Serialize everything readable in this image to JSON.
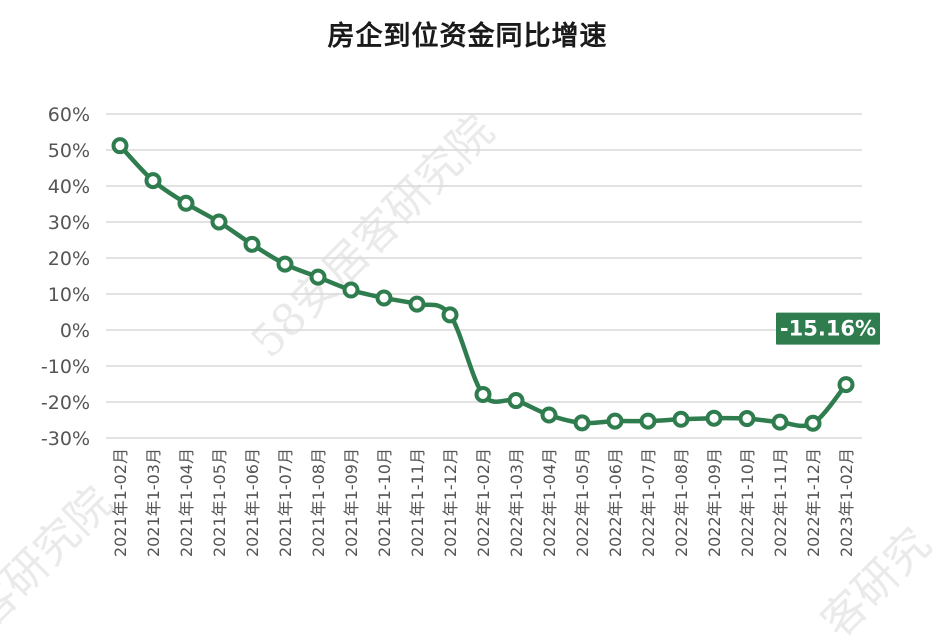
{
  "chart_data": {
    "type": "line",
    "title": "房企到位资金同比增速",
    "xlabel": "",
    "ylabel": "",
    "ylim": [
      -30,
      60
    ],
    "yticks": [
      "60%",
      "50%",
      "40%",
      "30%",
      "20%",
      "10%",
      "0%",
      "-10%",
      "-20%",
      "-30%"
    ],
    "grid": true,
    "categories": [
      "2021年1-02月",
      "2021年1-03月",
      "2021年1-04月",
      "2021年1-05月",
      "2021年1-06月",
      "2021年1-07月",
      "2021年1-08月",
      "2021年1-09月",
      "2021年1-10月",
      "2021年1-11月",
      "2021年1-12月",
      "2022年1-02月",
      "2022年1-03月",
      "2022年1-04月",
      "2022年1-05月",
      "2022年1-06月",
      "2022年1-07月",
      "2022年1-08月",
      "2022年1-09月",
      "2022年1-10月",
      "2022年1-11月",
      "2022年1-12月",
      "2023年1-02月"
    ],
    "series": [
      {
        "values": [
          51.2,
          41.5,
          35.2,
          30.0,
          23.8,
          18.3,
          14.7,
          11.1,
          8.9,
          7.2,
          4.2,
          -17.9,
          -19.6,
          -23.6,
          -25.8,
          -25.3,
          -25.3,
          -24.8,
          -24.5,
          -24.6,
          -25.6,
          -25.9,
          -15.16
        ],
        "color": "#2f7d4f"
      }
    ],
    "annotation": {
      "label": "-15.16%",
      "index": 22,
      "color": "#2f7d4f"
    }
  },
  "watermark": {
    "text_center": "58安居客研究院",
    "text_left": "客研究院",
    "text_right": "客研究"
  }
}
